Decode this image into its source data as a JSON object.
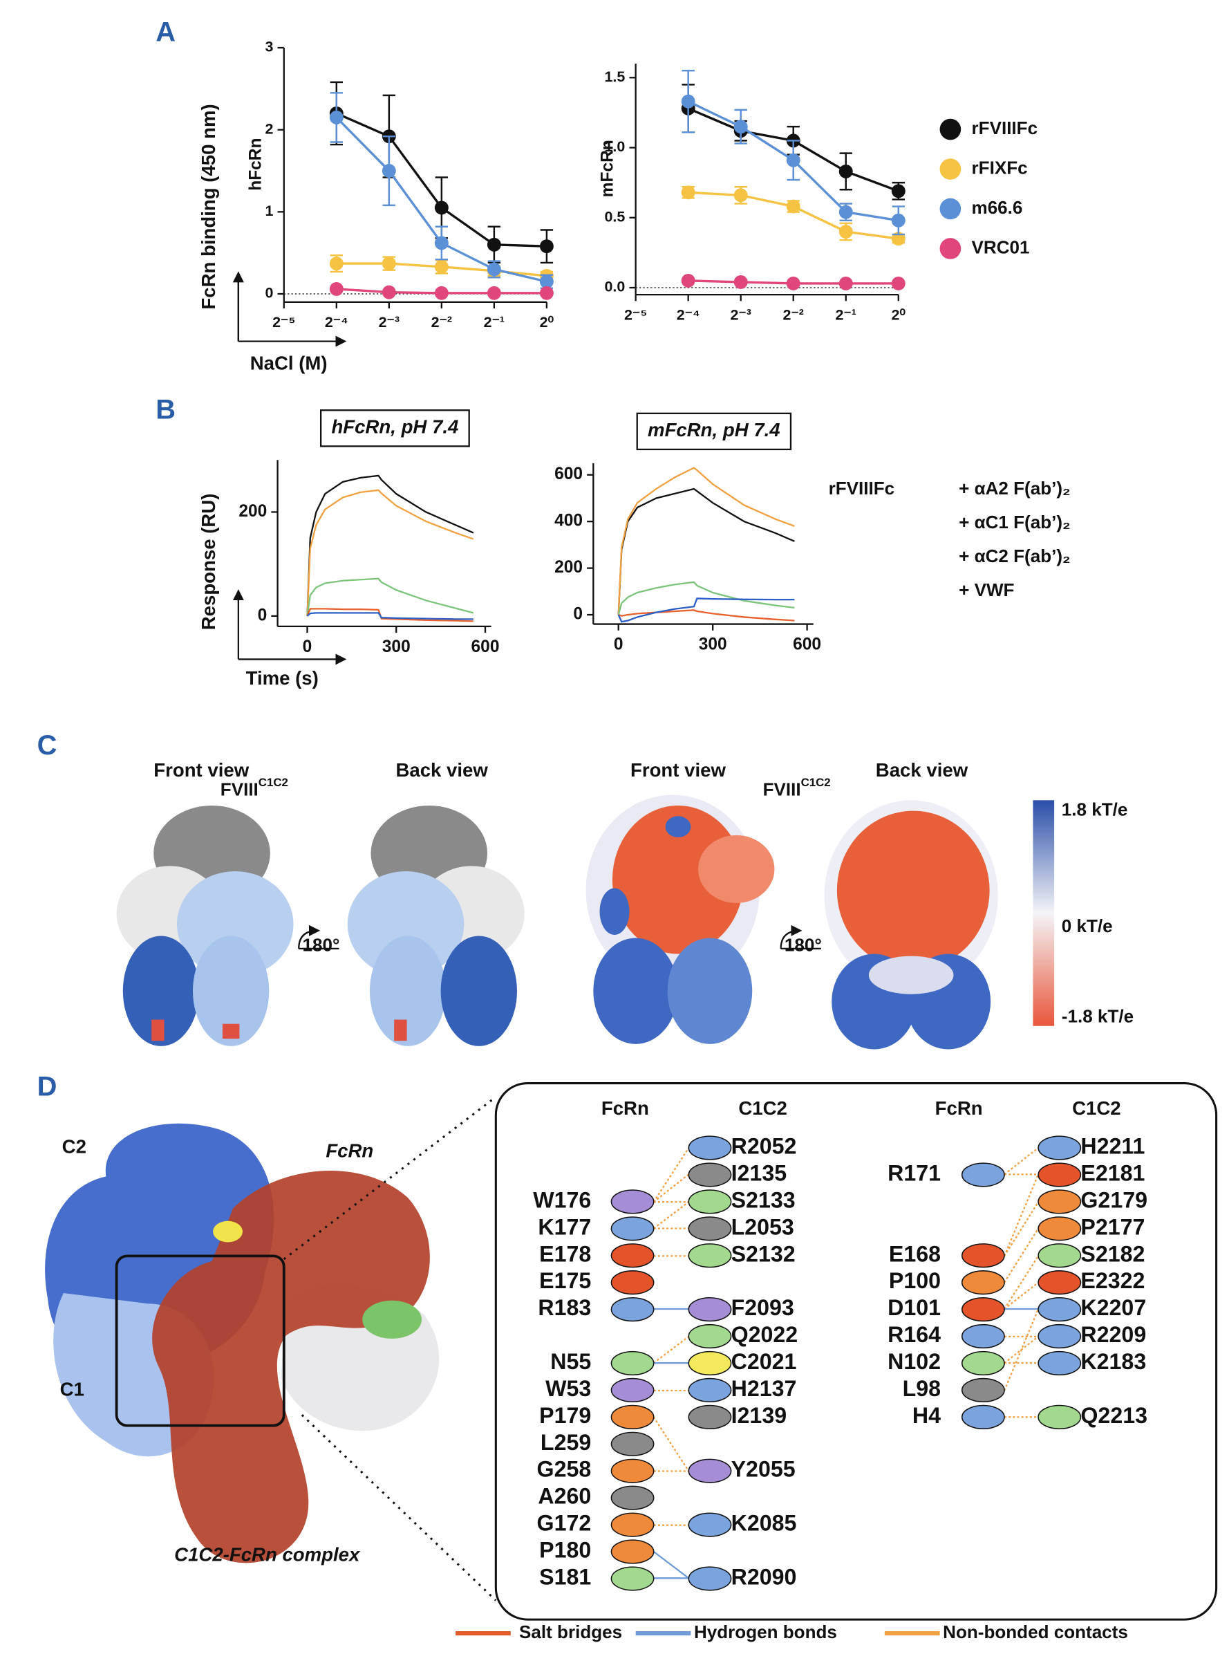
{
  "panels": {
    "A": {
      "label": "A",
      "ylabel": "FcRn binding (450 nm)",
      "xlabel": "NaCl (M)"
    },
    "B": {
      "label": "B",
      "ylabel": "Response (RU)",
      "xlabel": "Time (s)"
    },
    "C": {
      "label": "C",
      "groups": [
        {
          "title": "FVIII",
          "title_sup": "C1C2",
          "views": [
            "Front view",
            "Back view"
          ],
          "rotation": "180°"
        },
        {
          "title": "FVIII",
          "title_sup": "C1C2",
          "views": [
            "Front view",
            "Back view"
          ],
          "rotation": "180°"
        }
      ],
      "colorbar": [
        "1.8 kT/e",
        "0 kT/e",
        "-1.8 kT/e"
      ]
    },
    "D": {
      "label": "D",
      "image_labels": {
        "c2": "C2",
        "c1": "C1",
        "fcrn": "FcRn",
        "caption": "C1C2-FcRn complex"
      },
      "groups": [
        {
          "fcrn_header": "FcRn",
          "c1c2_header": "C1C2",
          "rows": [
            {
              "c1c2": {
                "name": "R2052",
                "color": "#7ba3dd"
              }
            },
            {
              "c1c2": {
                "name": "I2135",
                "color": "#8a8a8a"
              }
            },
            {
              "fcrn": {
                "name": "W176",
                "color": "#a58ed6"
              },
              "c1c2": {
                "name": "S2133",
                "color": "#a3d98f"
              }
            },
            {
              "fcrn": {
                "name": "K177",
                "color": "#7ba3dd"
              },
              "c1c2": {
                "name": "L2053",
                "color": "#8a8a8a"
              }
            },
            {
              "fcrn": {
                "name": "E178",
                "color": "#e5532b"
              },
              "c1c2": {
                "name": "S2132",
                "color": "#a3d98f"
              }
            },
            {
              "fcrn": {
                "name": "E175",
                "color": "#e5532b"
              }
            },
            {
              "fcrn": {
                "name": "R183",
                "color": "#7ba3dd"
              },
              "c1c2": {
                "name": "F2093",
                "color": "#a58ed6"
              }
            },
            {
              "c1c2": {
                "name": "Q2022",
                "color": "#a3d98f"
              }
            },
            {
              "fcrn": {
                "name": "N55",
                "color": "#a3d98f"
              },
              "c1c2": {
                "name": "C2021",
                "color": "#f2ea5c"
              }
            },
            {
              "fcrn": {
                "name": "W53",
                "color": "#a58ed6"
              },
              "c1c2": {
                "name": "H2137",
                "color": "#7ba3dd"
              }
            },
            {
              "fcrn": {
                "name": "P179",
                "color": "#ef8a3a"
              },
              "c1c2": {
                "name": "I2139",
                "color": "#8a8a8a"
              }
            },
            {
              "fcrn": {
                "name": "L259",
                "color": "#8a8a8a"
              }
            },
            {
              "fcrn": {
                "name": "G258",
                "color": "#ef8a3a"
              },
              "c1c2": {
                "name": "Y2055",
                "color": "#a58ed6"
              }
            },
            {
              "fcrn": {
                "name": "A260",
                "color": "#8a8a8a"
              }
            },
            {
              "fcrn": {
                "name": "G172",
                "color": "#ef8a3a"
              },
              "c1c2": {
                "name": "K2085",
                "color": "#7ba3dd"
              }
            },
            {
              "fcrn": {
                "name": "P180",
                "color": "#ef8a3a"
              }
            },
            {
              "fcrn": {
                "name": "S181",
                "color": "#a3d98f"
              },
              "c1c2": {
                "name": "R2090",
                "color": "#7ba3dd"
              }
            }
          ]
        },
        {
          "fcrn_header": "FcRn",
          "c1c2_header": "C1C2",
          "rows": [
            {
              "c1c2": {
                "name": "H2211",
                "color": "#7ba3dd"
              }
            },
            {
              "fcrn": {
                "name": "R171",
                "color": "#7ba3dd"
              },
              "c1c2": {
                "name": "E2181",
                "color": "#e5532b"
              }
            },
            {
              "c1c2": {
                "name": "G2179",
                "color": "#ef8a3a"
              }
            },
            {
              "c1c2": {
                "name": "P2177",
                "color": "#ef8a3a"
              }
            },
            {
              "fcrn": {
                "name": "E168",
                "color": "#e5532b"
              },
              "c1c2": {
                "name": "S2182",
                "color": "#a3d98f"
              }
            },
            {
              "fcrn": {
                "name": "P100",
                "color": "#ef8a3a"
              },
              "c1c2": {
                "name": "E2322",
                "color": "#e5532b"
              }
            },
            {
              "fcrn": {
                "name": "D101",
                "color": "#e5532b"
              },
              "c1c2": {
                "name": "K2207",
                "color": "#7ba3dd"
              }
            },
            {
              "fcrn": {
                "name": "R164",
                "color": "#7ba3dd"
              },
              "c1c2": {
                "name": "R2209",
                "color": "#7ba3dd"
              }
            },
            {
              "fcrn": {
                "name": "N102",
                "color": "#a3d98f"
              },
              "c1c2": {
                "name": "K2183",
                "color": "#7ba3dd"
              }
            },
            {
              "fcrn": {
                "name": "L98",
                "color": "#8a8a8a"
              }
            },
            {
              "fcrn": {
                "name": "H4",
                "color": "#7ba3dd"
              },
              "c1c2": {
                "name": "Q2213",
                "color": "#a3d98f"
              }
            }
          ]
        }
      ],
      "legend": [
        {
          "label": "Salt bridges",
          "color": "#e05a2a"
        },
        {
          "label": "Hydrogen bonds",
          "color": "#6f9bd8"
        },
        {
          "label": "Non-bonded contacts",
          "color": "#f0a040"
        }
      ]
    }
  },
  "chart_data": [
    {
      "type": "line",
      "ylabel": "hFcRn",
      "xscale": "log2",
      "markers": true,
      "zero_line": true,
      "legend": "right",
      "x": [
        0.0625,
        0.125,
        0.25,
        0.5,
        1
      ],
      "xlim": [
        0.03125,
        1
      ],
      "xticks": [
        {
          "value": 0.03125,
          "label": "2⁻⁵"
        },
        {
          "value": 0.0625,
          "label": "2⁻⁴"
        },
        {
          "value": 0.125,
          "label": "2⁻³"
        },
        {
          "value": 0.25,
          "label": "2⁻²"
        },
        {
          "value": 0.5,
          "label": "2⁻¹"
        },
        {
          "value": 1,
          "label": "2⁰"
        }
      ],
      "ylim": [
        -0.1,
        3
      ],
      "yticks": [
        0,
        1,
        2,
        3
      ],
      "series": [
        {
          "name": "rFVIIIFc",
          "color": "#111111",
          "values": [
            2.2,
            1.92,
            1.05,
            0.6,
            0.58
          ],
          "errors": [
            0.38,
            0.5,
            0.37,
            0.22,
            0.2
          ]
        },
        {
          "name": "rFIXFc",
          "color": "#f5c242",
          "values": [
            0.37,
            0.37,
            0.33,
            0.28,
            0.22
          ],
          "errors": [
            0.1,
            0.08,
            0.08,
            0.06,
            0.05
          ]
        },
        {
          "name": "m66.6",
          "color": "#5b8fd6",
          "values": [
            2.15,
            1.5,
            0.62,
            0.3,
            0.15
          ],
          "errors": [
            0.3,
            0.42,
            0.2,
            0.1,
            0.08
          ]
        },
        {
          "name": "VRC01",
          "color": "#e0457b",
          "values": [
            0.06,
            0.02,
            0.01,
            0.01,
            0.01
          ],
          "errors": [
            0.01,
            0.01,
            0.01,
            0.01,
            0.01
          ]
        }
      ]
    },
    {
      "type": "line",
      "ylabel": "mFcRn",
      "xscale": "log2",
      "markers": true,
      "zero_line": true,
      "x": [
        0.0625,
        0.125,
        0.25,
        0.5,
        1
      ],
      "xlim": [
        0.03125,
        1
      ],
      "xticks": [
        {
          "value": 0.03125,
          "label": "2⁻⁵"
        },
        {
          "value": 0.0625,
          "label": "2⁻⁴"
        },
        {
          "value": 0.125,
          "label": "2⁻³"
        },
        {
          "value": 0.25,
          "label": "2⁻²"
        },
        {
          "value": 0.5,
          "label": "2⁻¹"
        },
        {
          "value": 1,
          "label": "2⁰"
        }
      ],
      "ylim": [
        -0.05,
        1.6
      ],
      "yticks": [
        {
          "value": 0,
          "label": "0.0"
        },
        {
          "value": 0.5,
          "label": "0.5"
        },
        {
          "value": 1,
          "label": "1.0"
        },
        {
          "value": 1.5,
          "label": "1.5"
        }
      ],
      "series": [
        {
          "color": "#111111",
          "values": [
            1.28,
            1.12,
            1.05,
            0.83,
            0.69
          ],
          "errors": [
            0.17,
            0.07,
            0.1,
            0.13,
            0.06
          ]
        },
        {
          "color": "#f5c242",
          "values": [
            0.68,
            0.66,
            0.58,
            0.4,
            0.35
          ],
          "errors": [
            0.04,
            0.06,
            0.04,
            0.06,
            0.03
          ]
        },
        {
          "color": "#5b8fd6",
          "values": [
            1.33,
            1.15,
            0.91,
            0.54,
            0.48
          ],
          "errors": [
            0.22,
            0.12,
            0.14,
            0.06,
            0.1
          ]
        },
        {
          "color": "#e0457b",
          "values": [
            0.05,
            0.04,
            0.03,
            0.03,
            0.03
          ]
        }
      ]
    },
    {
      "type": "line",
      "title": "hFcRn, pH 7.4",
      "legend": "right",
      "x": [
        0,
        10,
        30,
        60,
        120,
        180,
        240,
        250,
        300,
        400,
        500,
        560
      ],
      "xlim": [
        -100,
        620
      ],
      "xticks": [
        0,
        300,
        600
      ],
      "ylim": [
        -20,
        300
      ],
      "yticks": [
        0,
        200
      ],
      "series": [
        {
          "name": "rFVIIIFc",
          "color": "#111111",
          "values": [
            0,
            150,
            200,
            235,
            258,
            266,
            270,
            262,
            235,
            200,
            175,
            160
          ]
        },
        {
          "name": "+ αA2 F(ab’)₂",
          "color": "#f0a040",
          "values": [
            0,
            130,
            175,
            205,
            228,
            238,
            242,
            236,
            212,
            182,
            160,
            148
          ]
        },
        {
          "name": "+ αC1 F(ab’)₂",
          "color": "#7cc47c",
          "values": [
            0,
            40,
            55,
            63,
            68,
            70,
            72,
            65,
            50,
            30,
            15,
            6
          ]
        },
        {
          "name": "+ αC2 F(ab’)₂",
          "color": "#e8602c",
          "values": [
            0,
            14,
            14,
            14,
            13,
            13,
            12,
            -5,
            -6,
            -8,
            -9,
            -10
          ]
        },
        {
          "name": "+ VWF",
          "color": "#2b5ec7",
          "values": [
            0,
            5,
            6,
            6,
            6,
            6,
            6,
            -3,
            -4,
            -5,
            -6,
            -6
          ]
        }
      ]
    },
    {
      "type": "line",
      "title": "mFcRn, pH 7.4",
      "x": [
        0,
        10,
        30,
        60,
        120,
        180,
        240,
        250,
        300,
        400,
        500,
        560
      ],
      "xlim": [
        -80,
        620
      ],
      "xticks": [
        0,
        300,
        600
      ],
      "ylim": [
        -40,
        650
      ],
      "yticks": [
        0,
        200,
        400,
        600
      ],
      "series": [
        {
          "color": "#111111",
          "values": [
            0,
            280,
            400,
            460,
            500,
            520,
            540,
            530,
            480,
            400,
            350,
            315
          ]
        },
        {
          "color": "#f0a040",
          "values": [
            0,
            290,
            410,
            480,
            540,
            590,
            630,
            620,
            560,
            470,
            410,
            380
          ]
        },
        {
          "color": "#7cc47c",
          "values": [
            0,
            50,
            75,
            95,
            115,
            130,
            140,
            125,
            95,
            60,
            40,
            30
          ]
        },
        {
          "color": "#e8602c",
          "values": [
            0,
            -5,
            0,
            5,
            10,
            15,
            20,
            15,
            5,
            -10,
            -20,
            -25
          ]
        },
        {
          "color": "#2b5ec7",
          "values": [
            0,
            -30,
            -25,
            -10,
            10,
            25,
            35,
            70,
            68,
            66,
            65,
            65
          ]
        }
      ]
    }
  ]
}
